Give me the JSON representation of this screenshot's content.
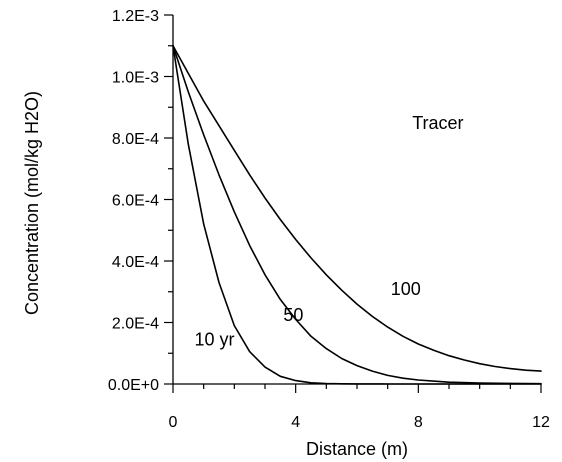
{
  "chart_data": {
    "type": "line",
    "title": "",
    "xlabel": "Distance (m)",
    "ylabel": "Concentration (mol/kg H2O)",
    "xlim": [
      0,
      12
    ],
    "ylim": [
      0,
      0.0012
    ],
    "x_ticks": [
      0,
      4,
      8,
      12
    ],
    "x_tick_labels": [
      "0",
      "4",
      "8",
      "12"
    ],
    "y_ticks": [
      0,
      0.0002,
      0.0004,
      0.0006,
      0.0008,
      0.001,
      0.0012
    ],
    "y_tick_labels": [
      "0.0E+0",
      "2.0E-4",
      "4.0E-4",
      "6.0E-4",
      "8.0E-4",
      "1.0E-3",
      "1.2E-3"
    ],
    "grid": false,
    "legend": "none",
    "annotations": [
      {
        "text": "Tracer",
        "x": 7.8,
        "y": 0.00083
      },
      {
        "text": "100",
        "x": 7.1,
        "y": 0.00029
      },
      {
        "text": "50",
        "x": 3.6,
        "y": 0.000205
      },
      {
        "text": "10 yr",
        "x": 0.7,
        "y": 0.000125
      }
    ],
    "series": [
      {
        "x": [
          0,
          0.5,
          1,
          1.5,
          2,
          2.5,
          3,
          3.5,
          4,
          4.5,
          5,
          5.5,
          6,
          7,
          8,
          9,
          10,
          11,
          12
        ],
        "y": [
          0.0011,
          0.00078,
          0.00052,
          0.00033,
          0.00019,
          0.000105,
          5.5e-05,
          2.5e-05,
          1.1e-05,
          4e-06,
          1.5e-06,
          5e-07,
          2e-07,
          0,
          0,
          0,
          0,
          0,
          0
        ]
      },
      {
        "x": [
          0,
          0.5,
          1,
          1.5,
          2,
          2.5,
          3,
          3.5,
          4,
          4.5,
          5,
          5.5,
          6,
          6.5,
          7,
          7.5,
          8,
          9,
          10,
          11,
          12
        ],
        "y": [
          0.0011,
          0.00095,
          0.00081,
          0.00068,
          0.00056,
          0.00045,
          0.000355,
          0.000275,
          0.00021,
          0.000155,
          0.000115,
          8.3e-05,
          6e-05,
          4.2e-05,
          2.8e-05,
          1.9e-05,
          1.3e-05,
          6e-06,
          3e-06,
          2e-06,
          1e-06
        ]
      },
      {
        "x": [
          0,
          0.5,
          1,
          1.5,
          2,
          2.5,
          3,
          3.5,
          4,
          4.5,
          5,
          5.5,
          6,
          6.5,
          7,
          7.5,
          8,
          8.5,
          9,
          9.5,
          10,
          10.5,
          11,
          11.5,
          12
        ],
        "y": [
          0.0011,
          0.00101,
          0.00092,
          0.00084,
          0.00076,
          0.00068,
          0.000605,
          0.000535,
          0.00047,
          0.00041,
          0.000355,
          0.000305,
          0.00026,
          0.00022,
          0.000185,
          0.000155,
          0.00013,
          0.00011,
          9.2e-05,
          7.8e-05,
          6.6e-05,
          5.7e-05,
          5e-05,
          4.5e-05,
          4.2e-05
        ]
      }
    ]
  }
}
